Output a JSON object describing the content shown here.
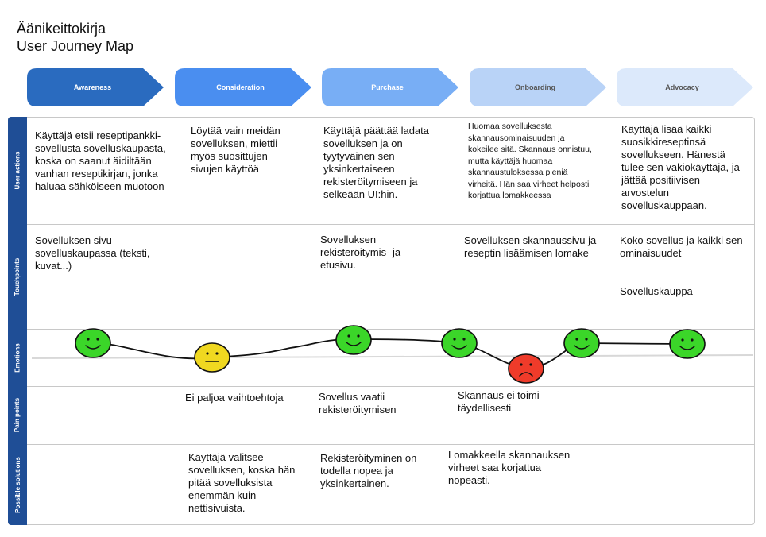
{
  "header": {
    "title": "Äänikeittokirja",
    "subtitle": "User Journey Map"
  },
  "phases": [
    {
      "label": "Awareness",
      "color": "#2a6bbf",
      "text_color": "#ffffff"
    },
    {
      "label": "Consideration",
      "color": "#4a8ef0",
      "text_color": "#ffffff"
    },
    {
      "label": "Purchase",
      "color": "#78aef5",
      "text_color": "#ffffff"
    },
    {
      "label": "Onboarding",
      "color": "#b9d3f7",
      "text_color": "#555555"
    },
    {
      "label": "Advocacy",
      "color": "#dce9fb",
      "text_color": "#555555"
    }
  ],
  "rows": [
    {
      "label": "User actions"
    },
    {
      "label": "Touchpoints"
    },
    {
      "label": "Emotions"
    },
    {
      "label": "Pain points"
    },
    {
      "label": "Possible solutions"
    }
  ],
  "user_actions": [
    "Käyttäjä etsii reseptipankki-sovellusta sovelluskaupasta, koska on saanut äidiltään vanhan reseptikirjan, jonka haluaa sähköiseen muotoon",
    "Löytää vain meidän sovelluksen, miettii myös suosittujen sivujen käyttöä",
    "Käyttäjä päättää ladata sovelluksen ja on tyytyväinen sen yksinkertaiseen rekisteröitymiseen ja selkeään UI:hin.",
    "Huomaa sovelluksesta skannausominaisuuden ja kokeilee sitä. Skannaus onnistuu, mutta käyttäjä huomaa skannaustuloksessa pieniä virheitä. Hän saa virheet helposti korjattua lomakkeessa",
    "Käyttäjä lisää kaikki suosikkireseptinsä sovellukseen. Hänestä tulee sen vakiokäyttäjä, ja jättää positiivisen arvostelun sovelluskauppaan."
  ],
  "touchpoints": [
    "Sovelluksen sivu sovelluskaupassa (teksti, kuvat...)",
    "",
    "Sovelluksen rekisteröitymis- ja etusivu.",
    "Sovelluksen skannaussivu ja reseptin lisäämisen lomake",
    "Koko sovellus ja kaikki sen ominaisuudet",
    "Sovelluskauppa"
  ],
  "emotions": [
    {
      "mood": "happy",
      "color": "#3bd629"
    },
    {
      "mood": "neutral",
      "color": "#f0d820"
    },
    {
      "mood": "happy",
      "color": "#3bd629"
    },
    {
      "mood": "happy",
      "color": "#3bd629"
    },
    {
      "mood": "sad",
      "color": "#ef3b2a"
    },
    {
      "mood": "happy",
      "color": "#3bd629"
    },
    {
      "mood": "happy",
      "color": "#3bd629"
    }
  ],
  "pain_points": [
    "Ei paljoa vaihtoehtoja",
    "Sovellus vaatii rekisteröitymisen",
    "Skannaus ei toimi täydellisesti"
  ],
  "possible_solutions": [
    "Käyttäjä valitsee sovelluksen, koska hän pitää sovelluksista enemmän kuin nettisivuista.",
    "Rekisteröityminen on todella nopea ja yksinkertainen.",
    "Lomakkeella skannauksen virheet saa korjattua nopeasti."
  ]
}
